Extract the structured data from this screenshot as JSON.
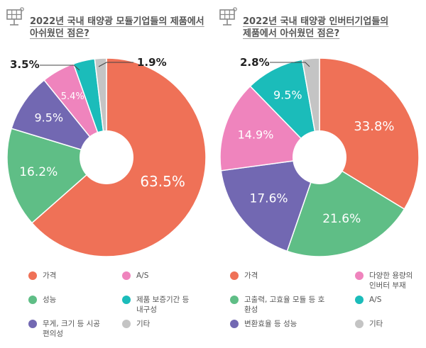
{
  "chart_data": [
    {
      "type": "pie",
      "title": [
        "2022년 국내 태양광 모듈기업들의 제품에서",
        "아쉬웠던 점은?"
      ],
      "slices": [
        {
          "label": "가격",
          "value": 63.5,
          "display": "63.5%",
          "color": "#ef7157"
        },
        {
          "label": "성능",
          "value": 16.2,
          "display": "16.2%",
          "color": "#5fbe86"
        },
        {
          "label": "무게, 크기 등 시공 편의성",
          "value": 9.5,
          "display": "9.5%",
          "color": "#7268b2"
        },
        {
          "label": "A/S",
          "value": 5.4,
          "display": "5.4%",
          "color": "#ef84bd"
        },
        {
          "label": "제품 보증기간 등 내구성",
          "value": 3.5,
          "display": "3.5%",
          "color": "#1bbcba"
        },
        {
          "label": "기타",
          "value": 1.9,
          "display": "1.9%",
          "color": "#c4c4c4"
        }
      ],
      "legend": [
        {
          "lines": [
            "가격"
          ],
          "color": "#ef7157"
        },
        {
          "lines": [
            "A/S"
          ],
          "color": "#ef84bd"
        },
        {
          "lines": [
            "성능"
          ],
          "color": "#5fbe86"
        },
        {
          "lines": [
            "제품 보증기간 등",
            "내구성"
          ],
          "color": "#1bbcba"
        },
        {
          "lines": [
            "무게, 크기 등 시공",
            "편의성"
          ],
          "color": "#7268b2"
        },
        {
          "lines": [
            "기타"
          ],
          "color": "#c4c4c4"
        }
      ]
    },
    {
      "type": "pie",
      "title": [
        "2022년 국내 태양광 인버터기업들의",
        "제품에서 아쉬웠던 점은?"
      ],
      "slices": [
        {
          "label": "가격",
          "value": 33.8,
          "display": "33.8%",
          "color": "#ef7157"
        },
        {
          "label": "고출력, 고효율 모듈 등 호환성",
          "value": 21.6,
          "display": "21.6%",
          "color": "#5fbe86"
        },
        {
          "label": "변환효율 등 성능",
          "value": 17.6,
          "display": "17.6%",
          "color": "#7268b2"
        },
        {
          "label": "다양한 용량의 인버터 부재",
          "value": 14.9,
          "display": "14.9%",
          "color": "#ef84bd"
        },
        {
          "label": "A/S",
          "value": 9.5,
          "display": "9.5%",
          "color": "#1bbcba"
        },
        {
          "label": "기타",
          "value": 2.8,
          "display": "2.8%",
          "color": "#c4c4c4"
        }
      ],
      "legend": [
        {
          "lines": [
            "가격"
          ],
          "color": "#ef7157"
        },
        {
          "lines": [
            "다양한 용량의",
            "인버터 부재"
          ],
          "color": "#ef84bd"
        },
        {
          "lines": [
            "고출력, 고효율 모듈 등 호환성"
          ],
          "color": "#5fbe86"
        },
        {
          "lines": [
            "A/S"
          ],
          "color": "#1bbcba"
        },
        {
          "lines": [
            "변환효율 등 성능"
          ],
          "color": "#7268b2"
        },
        {
          "lines": [
            "기타"
          ],
          "color": "#c4c4c4"
        }
      ]
    }
  ]
}
